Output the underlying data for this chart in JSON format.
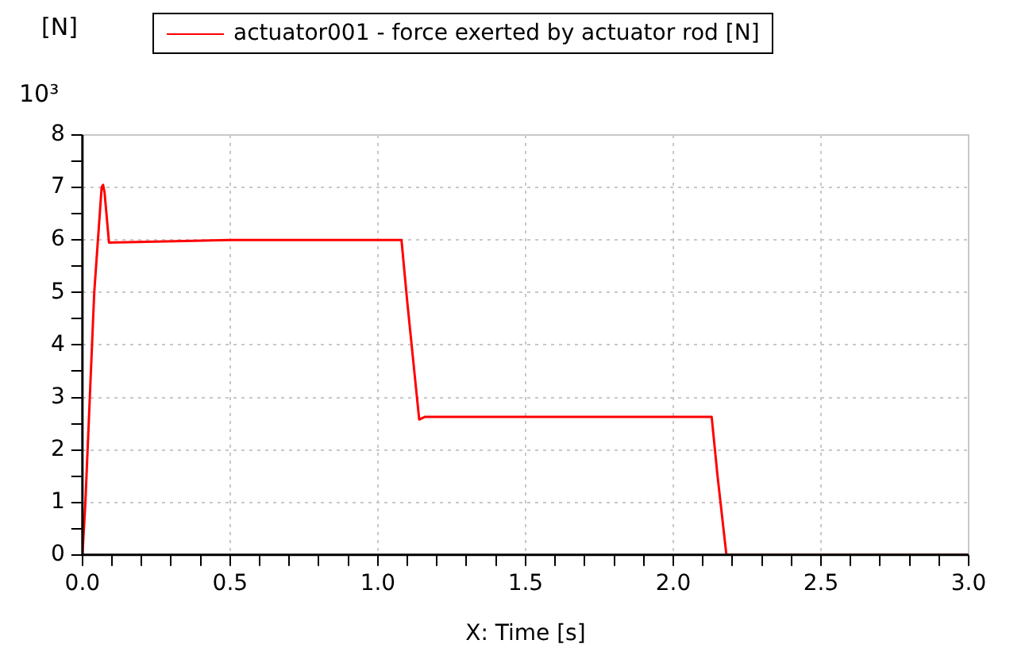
{
  "chart_data": {
    "type": "line",
    "xlabel": "X: Time [s]",
    "ylabel": "[N]",
    "annotations": [
      "10³"
    ],
    "series": [
      {
        "name": "actuator001 - force exerted by actuator rod [N]",
        "color": "#ff0000",
        "x": [
          0,
          0.01,
          0.04,
          0.065,
          0.07,
          0.075,
          0.09,
          0.5,
          1.0,
          1.08,
          1.1,
          1.14,
          1.16,
          1.5,
          2.0,
          2.13,
          2.15,
          2.18,
          2.5,
          3.0
        ],
        "values": [
          0,
          1.0,
          5.0,
          7.0,
          7.05,
          6.9,
          5.95,
          6.0,
          6.0,
          6.0,
          4.8,
          2.58,
          2.63,
          2.63,
          2.63,
          2.63,
          1.5,
          0,
          0,
          0
        ]
      }
    ],
    "xlim": [
      0,
      3
    ],
    "ylim": [
      0,
      8
    ],
    "xticks": [
      {
        "value": 0,
        "label": "0.0"
      },
      {
        "value": 0.1,
        "label": null
      },
      {
        "value": 0.2,
        "label": null
      },
      {
        "value": 0.3,
        "label": null
      },
      {
        "value": 0.4,
        "label": null
      },
      0.5,
      {
        "value": 0.6,
        "label": null
      },
      {
        "value": 0.7,
        "label": null
      },
      {
        "value": 0.8,
        "label": null
      },
      {
        "value": 0.9,
        "label": null
      },
      {
        "value": 1,
        "label": "1.0"
      },
      {
        "value": 1.1,
        "label": null
      },
      {
        "value": 1.2,
        "label": null
      },
      {
        "value": 1.3,
        "label": null
      },
      {
        "value": 1.4,
        "label": null
      },
      1.5,
      {
        "value": 1.6,
        "label": null
      },
      {
        "value": 1.7,
        "label": null
      },
      {
        "value": 1.8,
        "label": null
      },
      {
        "value": 1.9,
        "label": null
      },
      {
        "value": 2,
        "label": "2.0"
      },
      {
        "value": 2.1,
        "label": null
      },
      {
        "value": 2.2,
        "label": null
      },
      {
        "value": 2.3,
        "label": null
      },
      {
        "value": 2.4,
        "label": null
      },
      2.5,
      {
        "value": 2.6,
        "label": null
      },
      {
        "value": 2.7,
        "label": null
      },
      {
        "value": 2.8,
        "label": null
      },
      {
        "value": 2.9,
        "label": null
      },
      {
        "value": 3,
        "label": "3.0"
      }
    ],
    "yticks": [
      0,
      {
        "value": 0.5,
        "label": null
      },
      1,
      {
        "value": 1.5,
        "label": null
      },
      2,
      {
        "value": 2.5,
        "label": null
      },
      3,
      {
        "value": 3.5,
        "label": null
      },
      4,
      {
        "value": 4.5,
        "label": null
      },
      5,
      {
        "value": 5.5,
        "label": null
      },
      6,
      {
        "value": 6.5,
        "label": null
      },
      7,
      {
        "value": 7.5,
        "label": null
      },
      8
    ],
    "grid": true,
    "legend": "top",
    "marker": "none",
    "line_style": "solid"
  }
}
